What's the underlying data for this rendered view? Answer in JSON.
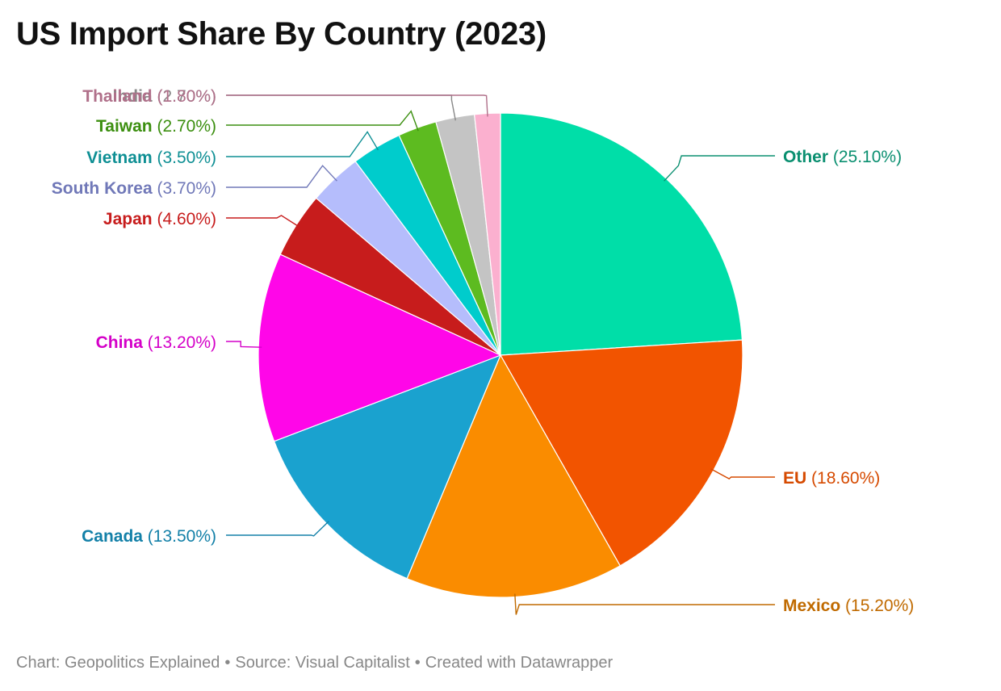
{
  "title": "US Import Share By Country (2023)",
  "footer": {
    "chart_credit": "Chart: Geopolitics Explained",
    "source": "Source: Visual Capitalist",
    "tool": "Created with Datawrapper",
    "separator": "•"
  },
  "chart_data": {
    "type": "pie",
    "title": "US Import Share By Country (2023)",
    "unit": "%",
    "slices": [
      {
        "name": "Other",
        "value": 25.1,
        "label": "(25.10%)",
        "color": "#00dea8",
        "label_color": "#0a8f70"
      },
      {
        "name": "EU",
        "value": 18.6,
        "label": "(18.60%)",
        "color": "#f25400",
        "label_color": "#d64a00"
      },
      {
        "name": "Mexico",
        "value": 15.2,
        "label": "(15.20%)",
        "color": "#fa8c00",
        "label_color": "#c06a00"
      },
      {
        "name": "Canada",
        "value": 13.5,
        "label": "(13.50%)",
        "color": "#1aa2cf",
        "label_color": "#1380a8"
      },
      {
        "name": "China",
        "value": 13.2,
        "label": "(13.20%)",
        "color": "#ff06e8",
        "label_color": "#d400c8"
      },
      {
        "name": "Japan",
        "value": 4.6,
        "label": "(4.60%)",
        "color": "#c71c1c",
        "label_color": "#c71c1c"
      },
      {
        "name": "South Korea",
        "value": 3.7,
        "label": "(3.70%)",
        "color": "#b5bdfc",
        "label_color": "#7078b8"
      },
      {
        "name": "Vietnam",
        "value": 3.5,
        "label": "(3.50%)",
        "color": "#00cccc",
        "label_color": "#0e8f94"
      },
      {
        "name": "Taiwan",
        "value": 2.7,
        "label": "(2.70%)",
        "color": "#5dbb20",
        "label_color": "#3c8f10"
      },
      {
        "name": "India",
        "value": 2.7,
        "label": "(2.70%)",
        "color": "#c4c4c4",
        "label_color": "#888888"
      },
      {
        "name": "Thailand",
        "value": 1.8,
        "label": "(1.80%)",
        "color": "#fbb0cf",
        "label_color": "#b0708a"
      }
    ]
  }
}
